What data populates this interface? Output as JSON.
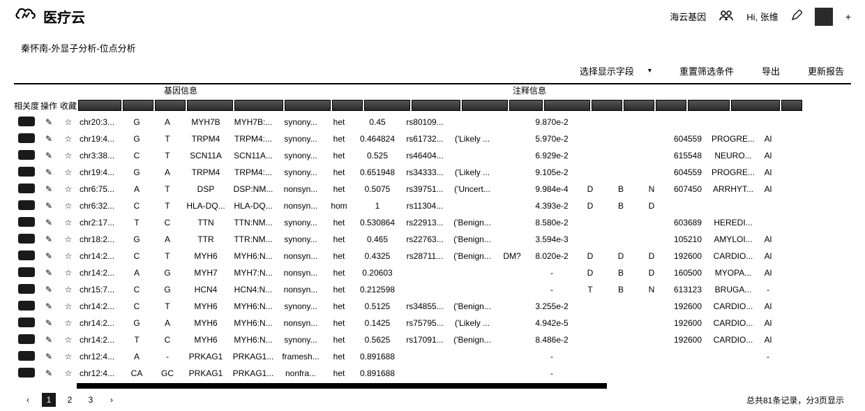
{
  "header": {
    "logo_text": "医疗云",
    "org_name": "海云基因",
    "greeting": "Hi, 张维",
    "plus": "+"
  },
  "breadcrumb": "秦怀南-外显子分析-位点分析",
  "toolbar": {
    "select_fields": "选择显示字段",
    "caret": "▾",
    "reset_filter": "重置筛选条件",
    "export": "导出",
    "refresh": "更新报告"
  },
  "group_headers": {
    "gene_info": "基因信息",
    "annotation_info": "注释信息"
  },
  "fixed_headers": {
    "relevance": "相关度",
    "operate": "操作",
    "favorite": "收藏"
  },
  "edit_glyph": "✎",
  "star_glyph": "☆",
  "rows": [
    {
      "chr": "chr20:3...",
      "ref": "G",
      "alt": "A",
      "gene": "MYH7B",
      "tx": "MYH7B:...",
      "cons": "synony...",
      "zyg": "het",
      "af": "0.45",
      "rsid": "rs80109...",
      "clin": "",
      "dm": "",
      "val": "9.870e-2",
      "p1": "",
      "p2": "",
      "p3": "",
      "omim": "",
      "dis": "",
      "ex": ""
    },
    {
      "chr": "chr19:4...",
      "ref": "G",
      "alt": "T",
      "gene": "TRPM4",
      "tx": "TRPM4:...",
      "cons": "synony...",
      "zyg": "het",
      "af": "0.464824",
      "rsid": "rs61732...",
      "clin": "('Likely ...",
      "dm": "",
      "val": "5.970e-2",
      "p1": "",
      "p2": "",
      "p3": "",
      "omim": "604559",
      "dis": "PROGRE...",
      "ex": "Al"
    },
    {
      "chr": "chr3:38...",
      "ref": "C",
      "alt": "T",
      "gene": "SCN11A",
      "tx": "SCN11A...",
      "cons": "synony...",
      "zyg": "het",
      "af": "0.525",
      "rsid": "rs46404...",
      "clin": "",
      "dm": "",
      "val": "6.929e-2",
      "p1": "",
      "p2": "",
      "p3": "",
      "omim": "615548",
      "dis": "NEURO...",
      "ex": "Al"
    },
    {
      "chr": "chr19:4...",
      "ref": "G",
      "alt": "A",
      "gene": "TRPM4",
      "tx": "TRPM4:...",
      "cons": "synony...",
      "zyg": "het",
      "af": "0.651948",
      "rsid": "rs34333...",
      "clin": "('Likely ...",
      "dm": "",
      "val": "9.105e-2",
      "p1": "",
      "p2": "",
      "p3": "",
      "omim": "604559",
      "dis": "PROGRE...",
      "ex": "Al"
    },
    {
      "chr": "chr6:75...",
      "ref": "A",
      "alt": "T",
      "gene": "DSP",
      "tx": "DSP:NM...",
      "cons": "nonsyn...",
      "zyg": "het",
      "af": "0.5075",
      "rsid": "rs39751...",
      "clin": "('Uncert...",
      "dm": "",
      "val": "9.984e-4",
      "p1": "D",
      "p2": "B",
      "p3": "N",
      "omim": "607450",
      "dis": "ARRHYT...",
      "ex": "Al"
    },
    {
      "chr": "chr6:32...",
      "ref": "C",
      "alt": "T",
      "gene": "HLA-DQ...",
      "tx": "HLA-DQ...",
      "cons": "nonsyn...",
      "zyg": "hom",
      "af": "1",
      "rsid": "rs11304...",
      "clin": "",
      "dm": "",
      "val": "4.393e-2",
      "p1": "D",
      "p2": "B",
      "p3": "D",
      "omim": "",
      "dis": "",
      "ex": ""
    },
    {
      "chr": "chr2:17...",
      "ref": "T",
      "alt": "C",
      "gene": "TTN",
      "tx": "TTN:NM...",
      "cons": "synony...",
      "zyg": "het",
      "af": "0.530864",
      "rsid": "rs22913...",
      "clin": "('Benign...",
      "dm": "",
      "val": "8.580e-2",
      "p1": "",
      "p2": "",
      "p3": "",
      "omim": "603689",
      "dis": "HEREDI...",
      "ex": ""
    },
    {
      "chr": "chr18:2...",
      "ref": "G",
      "alt": "A",
      "gene": "TTR",
      "tx": "TTR:NM...",
      "cons": "synony...",
      "zyg": "het",
      "af": "0.465",
      "rsid": "rs22763...",
      "clin": "('Benign...",
      "dm": "",
      "val": "3.594e-3",
      "p1": "",
      "p2": "",
      "p3": "",
      "omim": "105210",
      "dis": "AMYLOI...",
      "ex": "Al"
    },
    {
      "chr": "chr14:2...",
      "ref": "C",
      "alt": "T",
      "gene": "MYH6",
      "tx": "MYH6:N...",
      "cons": "nonsyn...",
      "zyg": "het",
      "af": "0.4325",
      "rsid": "rs28711...",
      "clin": "('Benign...",
      "dm": "DM?",
      "val": "8.020e-2",
      "p1": "D",
      "p2": "D",
      "p3": "D",
      "omim": "192600",
      "dis": "CARDIO...",
      "ex": "Al"
    },
    {
      "chr": "chr14:2...",
      "ref": "A",
      "alt": "G",
      "gene": "MYH7",
      "tx": "MYH7:N...",
      "cons": "nonsyn...",
      "zyg": "het",
      "af": "0.20603",
      "rsid": "",
      "clin": "",
      "dm": "",
      "val": "-",
      "p1": "D",
      "p2": "B",
      "p3": "D",
      "omim": "160500",
      "dis": "MYOPA...",
      "ex": "Al"
    },
    {
      "chr": "chr15:7...",
      "ref": "C",
      "alt": "G",
      "gene": "HCN4",
      "tx": "HCN4:N...",
      "cons": "nonsyn...",
      "zyg": "het",
      "af": "0.212598",
      "rsid": "",
      "clin": "",
      "dm": "",
      "val": "-",
      "p1": "T",
      "p2": "B",
      "p3": "N",
      "omim": "613123",
      "dis": "BRUGA...",
      "ex": "-"
    },
    {
      "chr": "chr14:2...",
      "ref": "C",
      "alt": "T",
      "gene": "MYH6",
      "tx": "MYH6:N...",
      "cons": "synony...",
      "zyg": "het",
      "af": "0.5125",
      "rsid": "rs34855...",
      "clin": "('Benign...",
      "dm": "",
      "val": "3.255e-2",
      "p1": "",
      "p2": "",
      "p3": "",
      "omim": "192600",
      "dis": "CARDIO...",
      "ex": "Al"
    },
    {
      "chr": "chr14:2...",
      "ref": "G",
      "alt": "A",
      "gene": "MYH6",
      "tx": "MYH6:N...",
      "cons": "nonsyn...",
      "zyg": "het",
      "af": "0.1425",
      "rsid": "rs75795...",
      "clin": "('Likely ...",
      "dm": "",
      "val": "4.942e-5",
      "p1": "",
      "p2": "",
      "p3": "",
      "omim": "192600",
      "dis": "CARDIO...",
      "ex": "Al"
    },
    {
      "chr": "chr14:2...",
      "ref": "T",
      "alt": "C",
      "gene": "MYH6",
      "tx": "MYH6:N...",
      "cons": "synony...",
      "zyg": "het",
      "af": "0.5625",
      "rsid": "rs17091...",
      "clin": "('Benign...",
      "dm": "",
      "val": "8.486e-2",
      "p1": "",
      "p2": "",
      "p3": "",
      "omim": "192600",
      "dis": "CARDIO...",
      "ex": "Al"
    },
    {
      "chr": "chr12:4...",
      "ref": "A",
      "alt": "-",
      "gene": "PRKAG1",
      "tx": "PRKAG1...",
      "cons": "framesh...",
      "zyg": "het",
      "af": "0.891688",
      "rsid": "",
      "clin": "",
      "dm": "",
      "val": "-",
      "p1": "",
      "p2": "",
      "p3": "",
      "omim": "",
      "dis": "",
      "ex": "-"
    },
    {
      "chr": "chr12:4...",
      "ref": "CA",
      "alt": "GC",
      "gene": "PRKAG1",
      "tx": "PRKAG1...",
      "cons": "nonfra...",
      "zyg": "het",
      "af": "0.891688",
      "rsid": "",
      "clin": "",
      "dm": "",
      "val": "-",
      "p1": "",
      "p2": "",
      "p3": "",
      "omim": "",
      "dis": "",
      "ex": ""
    }
  ],
  "pagination": {
    "prev": "‹",
    "pages": [
      "1",
      "2",
      "3"
    ],
    "next": "›",
    "active": 1,
    "summary": "总共81条记录，分3页显示"
  }
}
